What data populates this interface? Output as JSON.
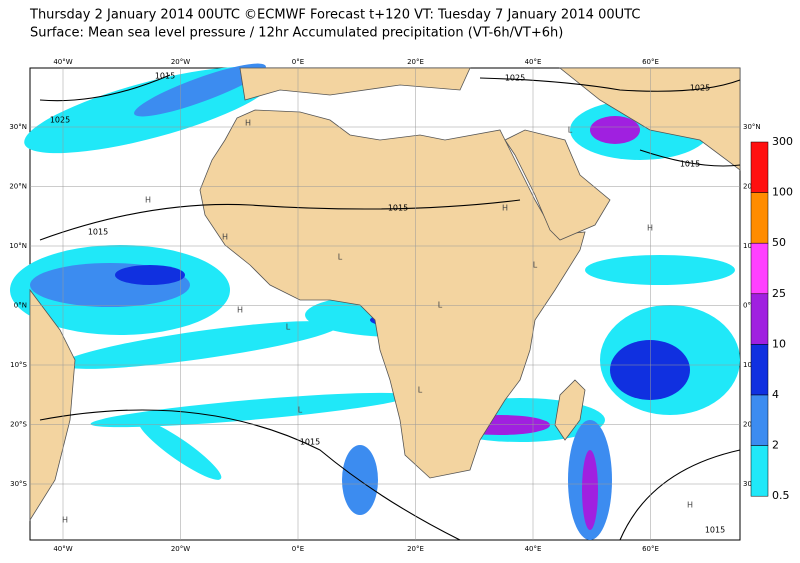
{
  "header": {
    "title": "Thursday 2 January 2014 00UTC ©ECMWF Forecast t+120 VT: Tuesday 7 January 2014 00UTC",
    "subtitle": "Surface: Mean sea level pressure / 12hr Accumulated precipitation (VT-6h/VT+6h)"
  },
  "map": {
    "longitude_labels": [
      "40°W",
      "20°W",
      "0°E",
      "20°E",
      "40°E",
      "60°E"
    ],
    "latitude_labels": [
      "30°N",
      "20°N",
      "10°N",
      "0°N",
      "10°S",
      "20°S",
      "30°S"
    ],
    "isobar_labels": [
      "1015",
      "1025",
      "1025",
      "1025",
      "1015",
      "1015",
      "1015",
      "1015",
      "1015"
    ],
    "pressure_centers": [
      "H",
      "H",
      "H",
      "H",
      "L",
      "L",
      "L",
      "L",
      "H",
      "L",
      "H",
      "L",
      "H",
      "L",
      "H"
    ]
  },
  "colorbar": {
    "levels": [
      300,
      100,
      50,
      25,
      10,
      4,
      2,
      0.5
    ],
    "colors": [
      "#ff1010",
      "#ff8c00",
      "#ff40ff",
      "#a020e0",
      "#1030e0",
      "#3c8cf0",
      "#20e8f8"
    ]
  }
}
